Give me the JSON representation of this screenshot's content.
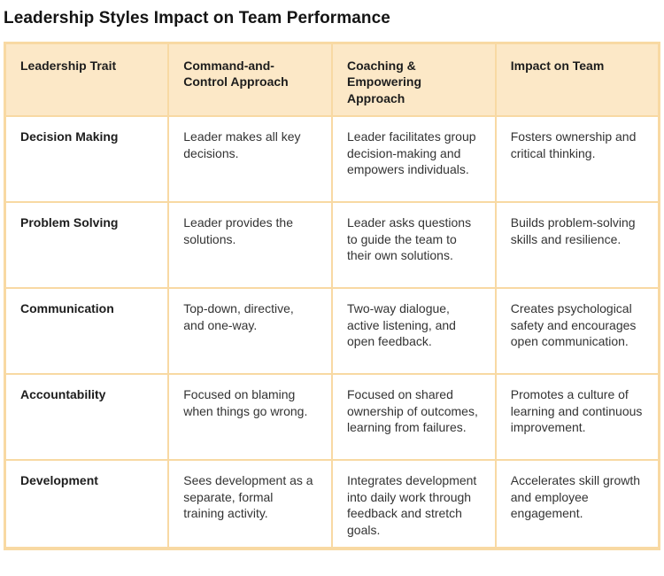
{
  "title": "Leadership Styles Impact on Team Performance",
  "colors": {
    "header_bg": "#FCE8C7",
    "border": "#F8D9A3",
    "title_text": "#141414",
    "body_text": "#333333"
  },
  "table": {
    "columns": [
      "Leadership Trait",
      "Command-and-Control Approach",
      "Coaching & Empowering Approach",
      "Impact on Team"
    ],
    "rows": [
      {
        "trait": "Decision Making",
        "command": "Leader makes all key decisions.",
        "coaching": "Leader facilitates group decision-making and empowers individuals.",
        "impact": "Fosters ownership and critical thinking."
      },
      {
        "trait": "Problem Solving",
        "command": "Leader provides the solutions.",
        "coaching": "Leader asks questions to guide the team to their own solutions.",
        "impact": "Builds problem-solving skills and resilience."
      },
      {
        "trait": "Communication",
        "command": "Top-down, directive, and one-way.",
        "coaching": "Two-way dialogue, active listening, and open feedback.",
        "impact": "Creates psychological safety and encourages open communication."
      },
      {
        "trait": "Accountability",
        "command": "Focused on blaming when things go wrong.",
        "coaching": "Focused on shared ownership of outcomes, learning from failures.",
        "impact": "Promotes a culture of learning and continuous improvement."
      },
      {
        "trait": "Development",
        "command": "Sees development as a separate, formal training activity.",
        "coaching": "Integrates development into daily work through feedback and stretch goals.",
        "impact": "Accelerates skill growth and employee engagement."
      }
    ]
  }
}
